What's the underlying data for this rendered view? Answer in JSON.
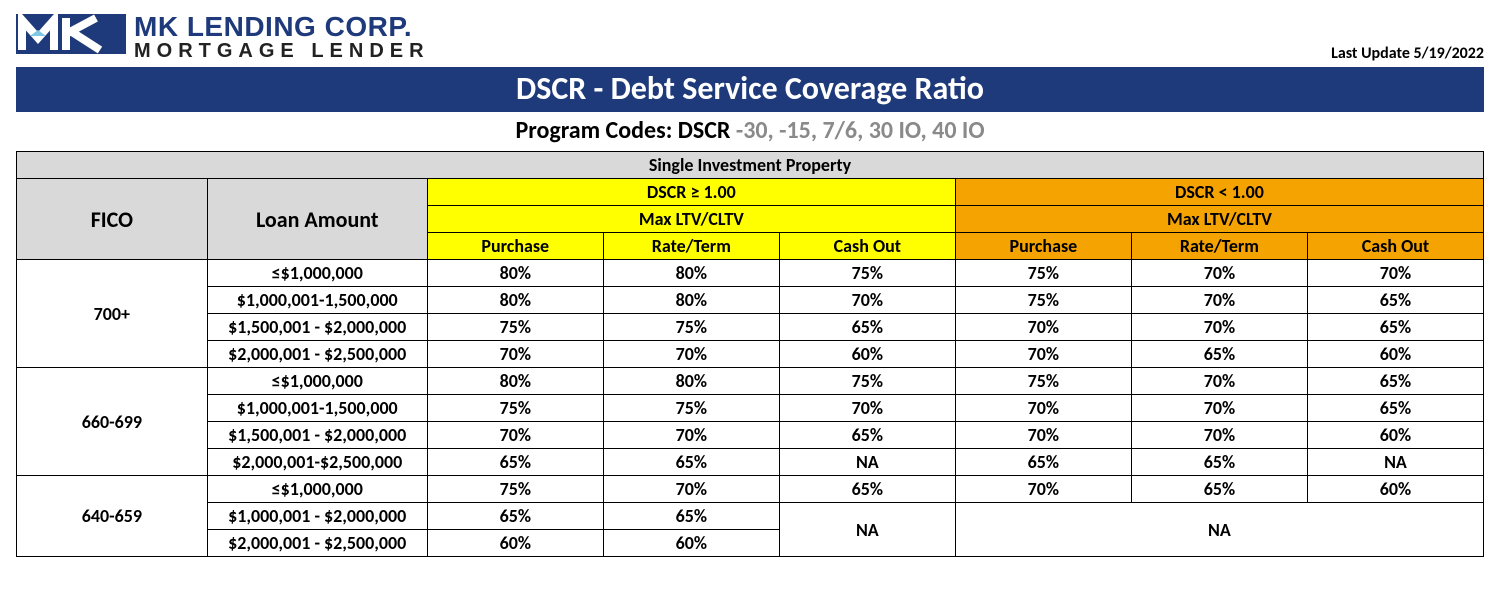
{
  "logo": {
    "corp": "MK LENDING CORP.",
    "tag": "MORTGAGE LENDER",
    "mark_bg": "#1f3a7a",
    "mark_fg": "#ffffff"
  },
  "last_update": "Last Update 5/19/2022",
  "title": "DSCR - Debt Service Coverage Ratio",
  "subtitle_prefix": "Program Codes: DSCR ",
  "subtitle_codes": "-30, -15, 7/6, 30 IO, 40 IO",
  "colors": {
    "title_bg": "#1f3a7a",
    "title_fg": "#ffffff",
    "grey": "#d9d9d9",
    "yellow": "#ffff00",
    "orange": "#f4a300",
    "codes_grey": "#8a8a8a"
  },
  "table": {
    "top_header": "Single Investment Property",
    "fico_label": "FICO",
    "loan_label": "Loan Amount",
    "ge_label": "DSCR ≥ 1.00",
    "lt_label": "DSCR < 1.00",
    "maxltv": "Max LTV/CLTV",
    "cols": [
      "Purchase",
      "Rate/Term",
      "Cash Out"
    ],
    "groups": [
      {
        "fico": "700+",
        "rows": [
          {
            "loan": "≤$1,000,000",
            "ge": [
              "80%",
              "80%",
              "75%"
            ],
            "lt": [
              "75%",
              "70%",
              "70%"
            ]
          },
          {
            "loan": "$1,000,001-1,500,000",
            "ge": [
              "80%",
              "80%",
              "70%"
            ],
            "lt": [
              "75%",
              "70%",
              "65%"
            ]
          },
          {
            "loan": "$1,500,001 - $2,000,000",
            "ge": [
              "75%",
              "75%",
              "65%"
            ],
            "lt": [
              "70%",
              "70%",
              "65%"
            ]
          },
          {
            "loan": "$2,000,001 - $2,500,000",
            "ge": [
              "70%",
              "70%",
              "60%"
            ],
            "lt": [
              "70%",
              "65%",
              "60%"
            ]
          }
        ]
      },
      {
        "fico": "660-699",
        "rows": [
          {
            "loan": "≤$1,000,000",
            "ge": [
              "80%",
              "80%",
              "75%"
            ],
            "lt": [
              "75%",
              "70%",
              "65%"
            ]
          },
          {
            "loan": "$1,000,001-1,500,000",
            "ge": [
              "75%",
              "75%",
              "70%"
            ],
            "lt": [
              "70%",
              "70%",
              "65%"
            ]
          },
          {
            "loan": "$1,500,001 - $2,000,000",
            "ge": [
              "70%",
              "70%",
              "65%"
            ],
            "lt": [
              "70%",
              "70%",
              "60%"
            ]
          },
          {
            "loan": "$2,000,001-$2,500,000",
            "ge": [
              "65%",
              "65%",
              "NA"
            ],
            "lt": [
              "65%",
              "65%",
              "NA"
            ]
          }
        ]
      },
      {
        "fico": "640-659",
        "rows": [
          {
            "loan": "≤$1,000,000",
            "ge": [
              "75%",
              "70%",
              "65%"
            ],
            "lt": [
              "70%",
              "65%",
              "60%"
            ]
          },
          {
            "loan": "$1,000,001 - $2,000,000",
            "ge": [
              "65%",
              "65%",
              {
                "span": "NA",
                "rowspan": 2
              }
            ],
            "lt": [
              {
                "span": "NA",
                "rowspan": 2,
                "colspan": 3
              }
            ]
          },
          {
            "loan": "$2,000,001 - $2,500,000",
            "ge": [
              "60%",
              "60%"
            ],
            "lt": []
          }
        ]
      }
    ]
  }
}
